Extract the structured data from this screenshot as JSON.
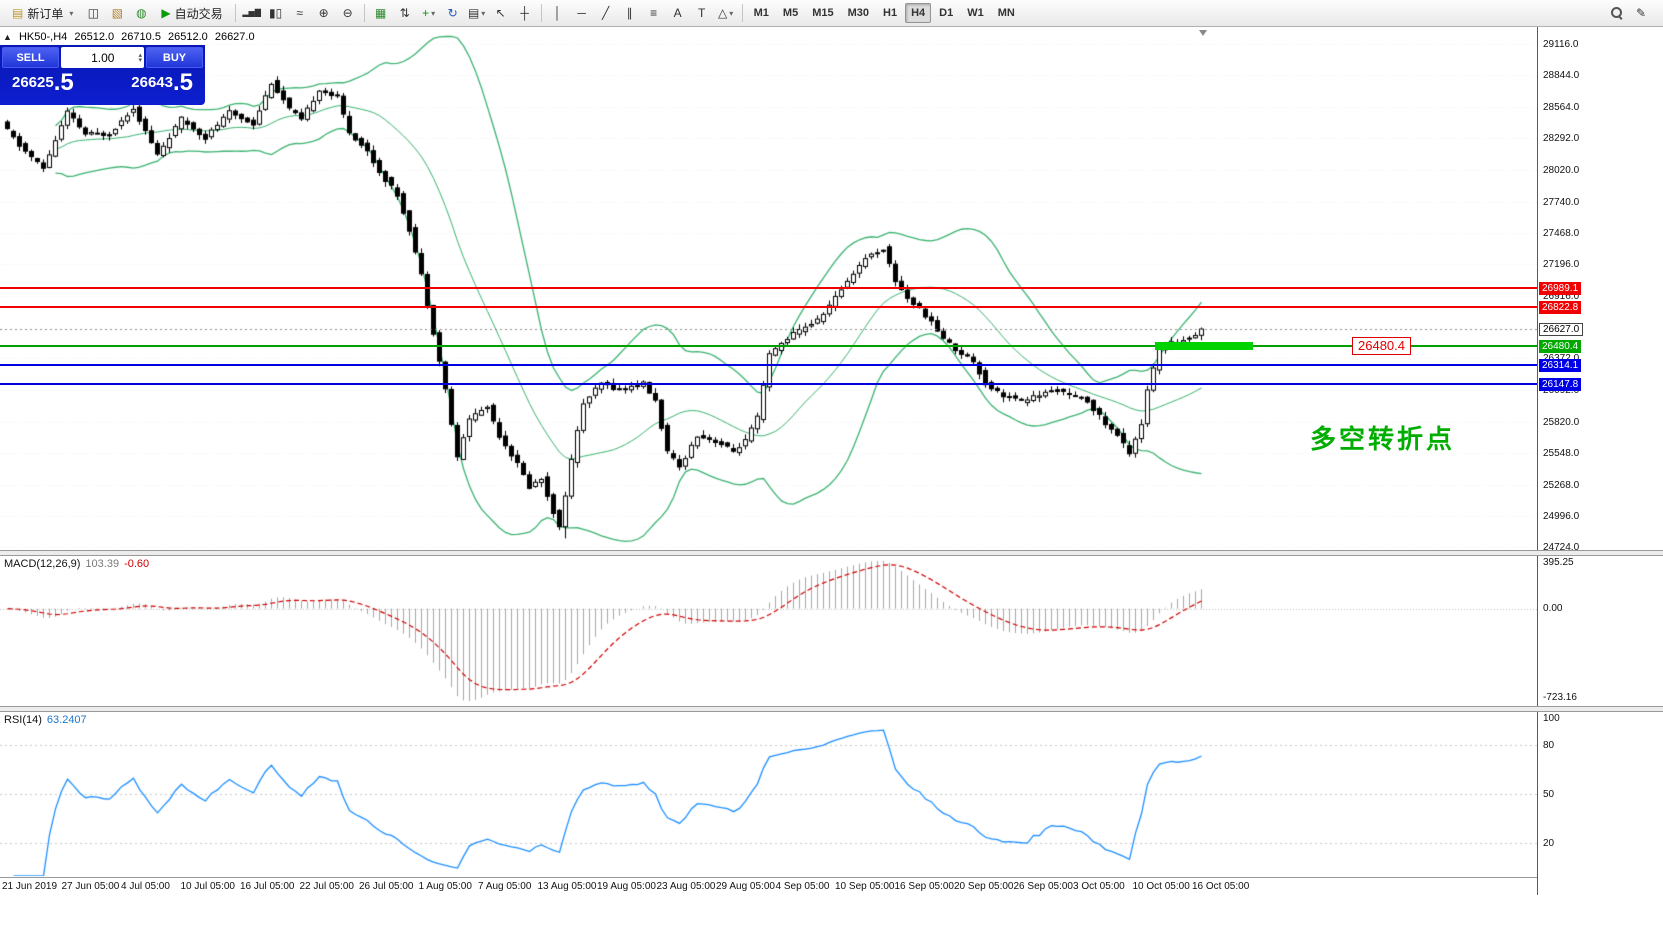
{
  "toolbar": {
    "new_order": "新订单",
    "new_order_icon": "▤",
    "auto_trading": "自动交易",
    "auto_trading_icon": "▶",
    "caret_icon": "▾",
    "icons": [
      {
        "name": "chart-window-icon",
        "glyph": "◫"
      },
      {
        "name": "strategy-tester-icon",
        "glyph": "▧",
        "color": "#b08030"
      },
      {
        "name": "community-icon",
        "glyph": "◍",
        "color": "#2d8a2d"
      }
    ],
    "chart_type_icons": [
      {
        "name": "bar-chart-icon",
        "glyph": "▂▅▇"
      },
      {
        "name": "candlestick-chart-icon",
        "glyph": "▮▯"
      },
      {
        "name": "line-chart-icon",
        "glyph": "≈"
      }
    ],
    "zoom_icons": [
      {
        "name": "zoom-in-icon",
        "glyph": "⊕"
      },
      {
        "name": "zoom-out-icon",
        "glyph": "⊖"
      }
    ],
    "window_icons": [
      {
        "name": "tile-windows-icon",
        "glyph": "▦",
        "color": "#2d8a2d"
      },
      {
        "name": "sort-windows-icon",
        "glyph": "⇅"
      }
    ],
    "chart_action_icons": [
      {
        "name": "add-chart-icon",
        "glyph": "+",
        "color": "#0a9a0a",
        "caret": true
      },
      {
        "name": "refresh-icon",
        "glyph": "↻",
        "color": "#2255cc"
      },
      {
        "name": "chart-properties-icon",
        "glyph": "▤",
        "caret": true
      }
    ],
    "cursor_icons": [
      {
        "name": "cursor-icon",
        "glyph": "↖"
      },
      {
        "name": "crosshair-icon",
        "glyph": "┼"
      }
    ],
    "draw_icons": [
      {
        "name": "vertical-line-icon",
        "glyph": "│"
      },
      {
        "name": "horizontal-line-icon",
        "glyph": "─"
      },
      {
        "name": "trendline-icon",
        "glyph": "╱"
      },
      {
        "name": "channel-icon",
        "glyph": "∥"
      },
      {
        "name": "fibonacci-icon",
        "glyph": "≡"
      },
      {
        "name": "text-icon",
        "glyph": "A"
      },
      {
        "name": "label-icon",
        "glyph": "T"
      },
      {
        "name": "shapes-icon",
        "glyph": "△",
        "caret": true
      }
    ],
    "timeframes": [
      {
        "label": "M1"
      },
      {
        "label": "M5"
      },
      {
        "label": "M15"
      },
      {
        "label": "M30"
      },
      {
        "label": "H1"
      },
      {
        "label": "H4",
        "active": true
      },
      {
        "label": "D1"
      },
      {
        "label": "W1"
      },
      {
        "label": "MN"
      }
    ],
    "right_icons": [
      {
        "name": "search-icon",
        "glyph": "mag"
      },
      {
        "name": "edit-icon",
        "glyph": "✎"
      }
    ]
  },
  "chart_header": {
    "collapse_icon": "▲",
    "symbol_period": "HK50-,H4",
    "open": "26512.0",
    "high": "26710.5",
    "low": "26512.0",
    "close": "26627.0"
  },
  "one_click": {
    "sell_label": "SELL",
    "buy_label": "BUY",
    "volume": "1.00",
    "spin_up_icon": "▴",
    "spin_down_icon": "▾",
    "sell_price": "26625.5",
    "buy_price": "26643.5"
  },
  "price_axis": {
    "labels": [
      29116.0,
      28844.0,
      28564.0,
      28292.0,
      28020.0,
      27740.0,
      27468.0,
      27196.0,
      26916.0,
      26372.0,
      26092.0,
      25820.0,
      25548.0,
      25268.0,
      24996.0,
      24724.0
    ],
    "tags": [
      {
        "value": 26989.1,
        "label": "26989.1",
        "type": "red"
      },
      {
        "value": 26822.8,
        "label": "26822.8",
        "type": "red"
      },
      {
        "value": 26627.0,
        "label": "26627.0",
        "type": "current"
      },
      {
        "value": 26480.4,
        "label": "26480.4",
        "type": "green"
      },
      {
        "value": 26314.1,
        "label": "26314.1",
        "type": "blue"
      },
      {
        "value": 26147.8,
        "label": "26147.8",
        "type": "blue"
      }
    ]
  },
  "macd_panel": {
    "title": "MACD(12,26,9)",
    "value": "103.39",
    "signal": "-0.60",
    "scale_top": "395.25",
    "scale_zero": "0.00",
    "scale_bottom": "-723.16"
  },
  "rsi_panel": {
    "title": "RSI(14)",
    "value": "63.2407",
    "scale": [
      100,
      80,
      50,
      20
    ]
  },
  "time_axis": {
    "labels": [
      "21 Jun 2019",
      "27 Jun 05:00",
      "4 Jul 05:00",
      "10 Jul 05:00",
      "16 Jul 05:00",
      "22 Jul 05:00",
      "26 Jul 05:00",
      "1 Aug 05:00",
      "7 Aug 05:00",
      "13 Aug 05:00",
      "19 Aug 05:00",
      "23 Aug 05:00",
      "29 Aug 05:00",
      "4 Sep 05:00",
      "10 Sep 05:00",
      "16 Sep 05:00",
      "20 Sep 05:00",
      "26 Sep 05:00",
      "3 Oct 05:00",
      "10 Oct 05:00",
      "16 Oct 05:00"
    ]
  },
  "annotations": {
    "price_label": "26480.4",
    "turning_point_text": "多空转折点",
    "highlight_price": 26480.4,
    "highlight_x_start": 1155,
    "highlight_x_width": 98,
    "highlight_color": "#00d200"
  },
  "colors": {
    "line_red": "#f00000",
    "line_green": "#00a000",
    "line_blue": "#0000e0",
    "bollinger_green": "#3cb371",
    "macd_histogram": "#a8a8a8",
    "macd_signal": "#d00000",
    "rsi_line": "#1e90ff",
    "panel_blue": "#0a18b4"
  },
  "chart_data": {
    "type": "candlestick",
    "symbol": "HK50-",
    "timeframe": "H4",
    "last_price": 26627.0,
    "visible_price_range": [
      24724.0,
      29116.0
    ],
    "indicators": [
      "Bollinger Bands (green)",
      "MACD(12,26,9) 103.39 -0.60",
      "RSI(14) 63.2407"
    ],
    "horizontal_lines": [
      {
        "price": 26989.1,
        "color": "#f00000"
      },
      {
        "price": 26822.8,
        "color": "#f00000"
      },
      {
        "price": 26480.4,
        "color": "#00a000"
      },
      {
        "price": 26314.1,
        "color": "#0000e0"
      },
      {
        "price": 26147.8,
        "color": "#0000e0"
      }
    ],
    "candle_count": 200,
    "price_path": [
      [
        0,
        28430
      ],
      [
        3,
        28230
      ],
      [
        7,
        28030
      ],
      [
        11,
        28520
      ],
      [
        14,
        28330
      ],
      [
        18,
        28330
      ],
      [
        22,
        28560
      ],
      [
        26,
        28150
      ],
      [
        30,
        28460
      ],
      [
        34,
        28300
      ],
      [
        38,
        28520
      ],
      [
        42,
        28420
      ],
      [
        45,
        28780
      ],
      [
        48,
        28550
      ],
      [
        50,
        28450
      ],
      [
        53,
        28720
      ],
      [
        56,
        28650
      ],
      [
        58,
        28350
      ],
      [
        61,
        28180
      ],
      [
        63,
        28000
      ],
      [
        66,
        27800
      ],
      [
        68,
        27500
      ],
      [
        70,
        27100
      ],
      [
        72,
        26600
      ],
      [
        74,
        26100
      ],
      [
        76,
        25500
      ],
      [
        78,
        25850
      ],
      [
        81,
        25950
      ],
      [
        83,
        25700
      ],
      [
        86,
        25450
      ],
      [
        88,
        25250
      ],
      [
        90,
        25320
      ],
      [
        93,
        24890
      ],
      [
        95,
        25480
      ],
      [
        97,
        25980
      ],
      [
        100,
        26150
      ],
      [
        103,
        26100
      ],
      [
        107,
        26150
      ],
      [
        109,
        26000
      ],
      [
        111,
        25550
      ],
      [
        113,
        25420
      ],
      [
        116,
        25700
      ],
      [
        119,
        25650
      ],
      [
        122,
        25560
      ],
      [
        124,
        25650
      ],
      [
        126,
        25850
      ],
      [
        128,
        26400
      ],
      [
        131,
        26550
      ],
      [
        134,
        26650
      ],
      [
        136,
        26700
      ],
      [
        139,
        26900
      ],
      [
        141,
        27050
      ],
      [
        144,
        27250
      ],
      [
        147,
        27330
      ],
      [
        149,
        27050
      ],
      [
        151,
        26900
      ],
      [
        154,
        26750
      ],
      [
        157,
        26550
      ],
      [
        159,
        26450
      ],
      [
        162,
        26350
      ],
      [
        164,
        26150
      ],
      [
        167,
        26050
      ],
      [
        170,
        26000
      ],
      [
        173,
        26050
      ],
      [
        176,
        26100
      ],
      [
        178,
        26050
      ],
      [
        181,
        26000
      ],
      [
        184,
        25800
      ],
      [
        186,
        25700
      ],
      [
        188,
        25550
      ],
      [
        190,
        25800
      ],
      [
        191,
        26100
      ],
      [
        193,
        26450
      ],
      [
        195,
        26500
      ],
      [
        198,
        26550
      ],
      [
        200,
        26627
      ]
    ]
  }
}
